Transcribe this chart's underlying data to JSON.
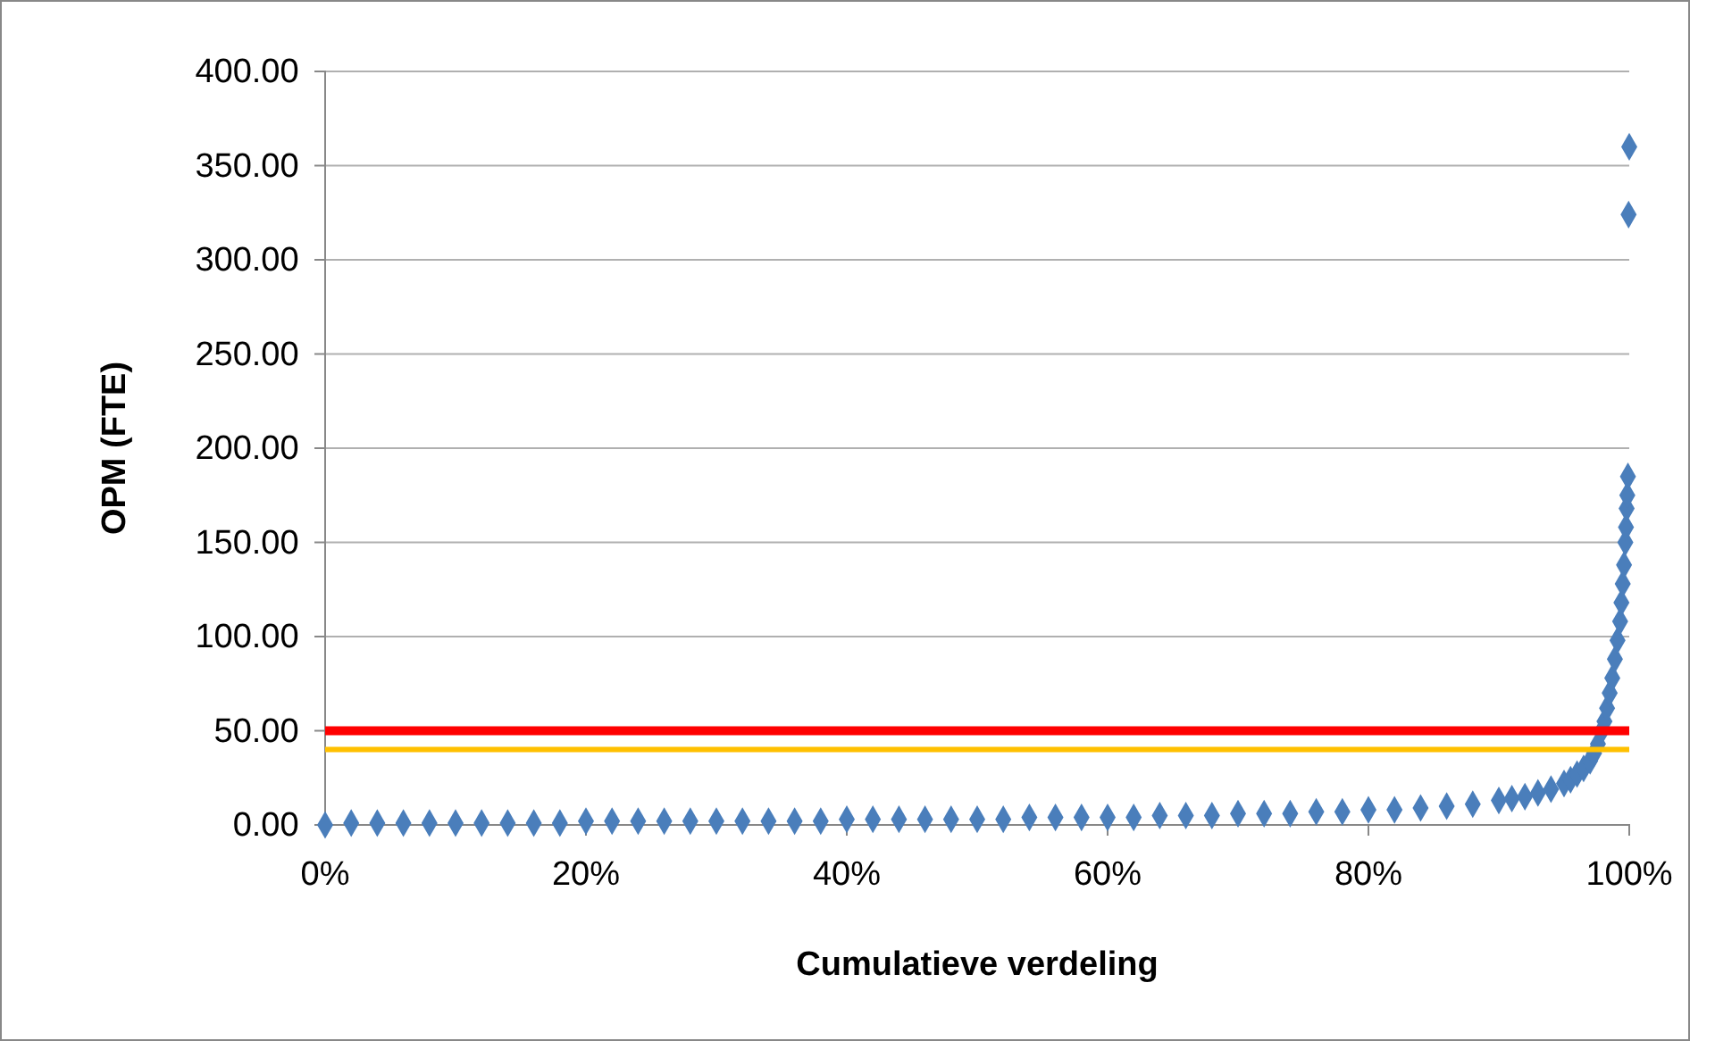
{
  "chart_data": {
    "type": "scatter",
    "xlabel": "Cumulatieve verdeling",
    "ylabel": "OPM (FTE)",
    "marker": "diamond",
    "grid": "y",
    "xlim": [
      0,
      100
    ],
    "xticks": [
      {
        "value": 0,
        "label": "0%"
      },
      {
        "value": 20,
        "label": "20%"
      },
      {
        "value": 40,
        "label": "40%"
      },
      {
        "value": 60,
        "label": "60%"
      },
      {
        "value": 80,
        "label": "80%"
      },
      {
        "value": 100,
        "label": "100%"
      }
    ],
    "ylim": [
      0,
      400
    ],
    "yticks": [
      {
        "value": 0,
        "label": "0.00"
      },
      {
        "value": 50,
        "label": "50.00"
      },
      {
        "value": 100,
        "label": "100.00"
      },
      {
        "value": 150,
        "label": "150.00"
      },
      {
        "value": 200,
        "label": "200.00"
      },
      {
        "value": 250,
        "label": "250.00"
      },
      {
        "value": 300,
        "label": "300.00"
      },
      {
        "value": 350,
        "label": "350.00"
      },
      {
        "value": 400,
        "label": "400.00"
      }
    ],
    "ref_lines": [
      {
        "axis": "y",
        "value": 50,
        "label": null,
        "color": "#ff0000"
      },
      {
        "axis": "y",
        "value": 40,
        "label": null,
        "color": "#ffc000"
      }
    ],
    "series": [
      {
        "color": "#4a7ebb",
        "x": [
          0,
          2,
          4,
          6,
          8,
          10,
          12,
          14,
          16,
          18,
          20,
          22,
          24,
          26,
          28,
          30,
          32,
          34,
          36,
          38,
          40,
          42,
          44,
          46,
          48,
          50,
          52,
          54,
          56,
          58,
          60,
          62,
          64,
          66,
          68,
          70,
          72,
          74,
          76,
          78,
          80,
          82,
          84,
          86,
          88,
          90,
          91,
          92,
          93,
          94,
          95,
          95.5,
          96,
          96.5,
          97,
          97.3,
          97.6,
          97.9,
          98.1,
          98.3,
          98.5,
          98.7,
          98.9,
          99.1,
          99.3,
          99.4,
          99.5,
          99.6,
          99.7,
          99.75,
          99.8,
          99.85,
          99.9,
          99.95,
          100
        ],
        "values": [
          0,
          1,
          1,
          1,
          1,
          1,
          1,
          1,
          1,
          1,
          2,
          2,
          2,
          2,
          2,
          2,
          2,
          2,
          2,
          2,
          3,
          3,
          3,
          3,
          3,
          3,
          3,
          4,
          4,
          4,
          4,
          4,
          5,
          5,
          5,
          6,
          6,
          6,
          7,
          7,
          8,
          8,
          9,
          10,
          11,
          13,
          14,
          15,
          17,
          19,
          22,
          24,
          27,
          30,
          34,
          38,
          43,
          50,
          55,
          62,
          70,
          78,
          88,
          98,
          108,
          118,
          128,
          138,
          150,
          158,
          168,
          175,
          185,
          324,
          360
        ]
      }
    ]
  }
}
